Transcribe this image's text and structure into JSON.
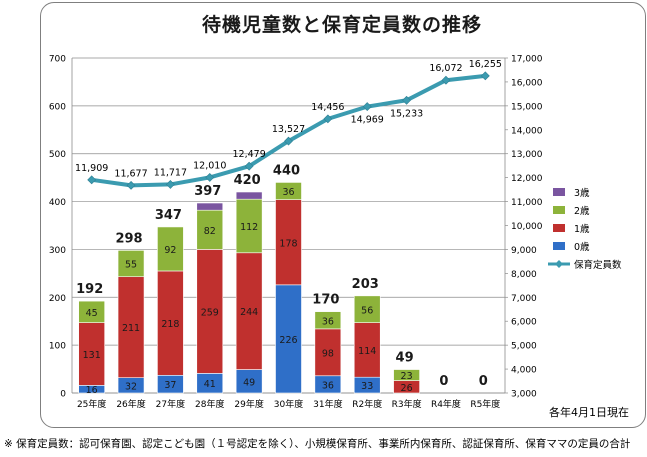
{
  "chart_data": {
    "type": "bar",
    "title": "待機児童数と保育定員数の推移",
    "categories": [
      "25年度",
      "26年度",
      "27年度",
      "28年度",
      "29年度",
      "30年度",
      "31年度",
      "R2年度",
      "R3年度",
      "R4年度",
      "R5年度"
    ],
    "series": [
      {
        "name": "0歳",
        "color": "#2f6fc8",
        "values": [
          16,
          32,
          37,
          41,
          49,
          226,
          36,
          33,
          0,
          0,
          0
        ]
      },
      {
        "name": "1歳",
        "color": "#c0302e",
        "values": [
          131,
          211,
          218,
          259,
          244,
          178,
          98,
          114,
          26,
          0,
          0
        ]
      },
      {
        "name": "2歳",
        "color": "#8db33a",
        "values": [
          45,
          55,
          92,
          82,
          112,
          36,
          36,
          56,
          23,
          0,
          0
        ]
      },
      {
        "name": "3歳",
        "color": "#7a55a0",
        "values": [
          0,
          0,
          0,
          15,
          15,
          0,
          0,
          0,
          0,
          0,
          0
        ]
      }
    ],
    "totals": [
      "192",
      "298",
      "347",
      "397",
      "420",
      "440",
      "170",
      "203",
      "49",
      "0",
      "0"
    ],
    "line": {
      "name": "保育定員数",
      "color": "#3b9bb0",
      "values": [
        11909,
        11677,
        11717,
        12010,
        12479,
        13527,
        14456,
        14969,
        15233,
        16072,
        16255
      ],
      "labels": [
        "11,909",
        "11,677",
        "11,717",
        "12,010",
        "12,479",
        "13,527",
        "14,456",
        "14,969",
        "15,233",
        "16,072",
        "16,255"
      ]
    },
    "ylim": [
      0,
      700
    ],
    "y2lim": [
      3000,
      17000
    ],
    "y_ticks": [
      "0",
      "100",
      "200",
      "300",
      "400",
      "500",
      "600",
      "700"
    ],
    "y2_ticks": [
      "3,000",
      "4,000",
      "5,000",
      "6,000",
      "7,000",
      "8,000",
      "9,000",
      "10,000",
      "11,000",
      "12,000",
      "13,000",
      "14,000",
      "15,000",
      "16,000",
      "17,000"
    ],
    "legend_position": "right",
    "legend_order": [
      "3歳",
      "2歳",
      "1歳",
      "0歳",
      "保育定員数"
    ]
  },
  "note": "各年4月1日現在",
  "footnote": "※ 保育定員数：認可保育園、認定こども園（１号認定を除く）、小規模保育所、事業所内保育所、認証保育所、保育ママの定員の合計"
}
